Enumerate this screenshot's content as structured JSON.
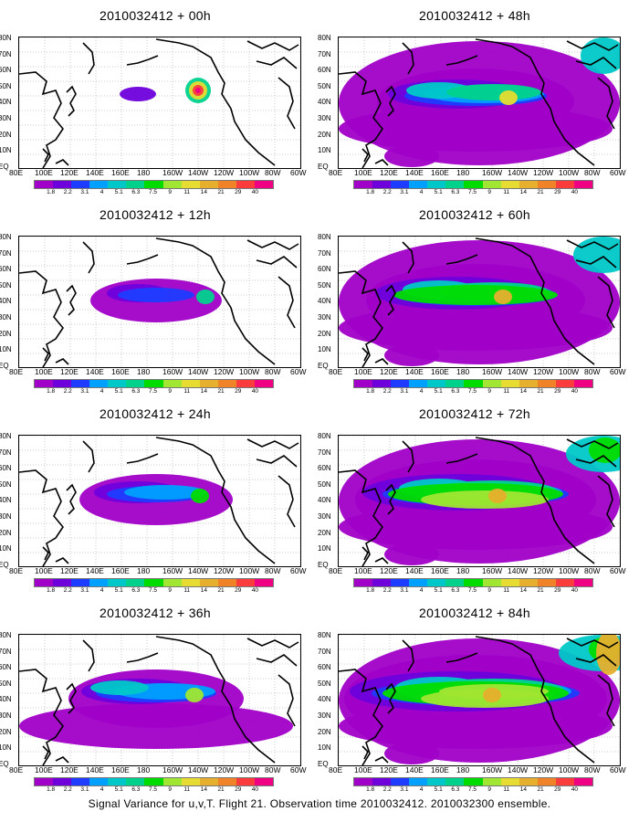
{
  "footer": "Signal Variance for u,v,T. Flight 21. Observation time 2010032412. 2010032300 ensemble.",
  "lat_labels": [
    "80N",
    "70N",
    "60N",
    "50N",
    "40N",
    "30N",
    "20N",
    "10N",
    "EQ"
  ],
  "lon_labels": [
    "80E",
    "100E",
    "120E",
    "140E",
    "160E",
    "180",
    "160W",
    "140W",
    "120W",
    "100W",
    "80W",
    "60W"
  ],
  "colorbar": {
    "labels": [
      "1.8",
      "2.2",
      "3.1",
      "4",
      "5.1",
      "6.3",
      "7.5",
      "9",
      "11",
      "14",
      "21",
      "29",
      "40"
    ],
    "colors": [
      "#a000c8",
      "#6e00dc",
      "#1e3cff",
      "#00a0ff",
      "#00c8c8",
      "#00d28c",
      "#00dc00",
      "#a0e632",
      "#e6dc32",
      "#e6af2d",
      "#f08228",
      "#fa3c3c",
      "#f00082"
    ]
  },
  "panels": [
    {
      "title": "2010032412 + 00h",
      "intensity": 0
    },
    {
      "title": "2010032412 + 48h",
      "intensity": 4
    },
    {
      "title": "2010032412 + 12h",
      "intensity": 1
    },
    {
      "title": "2010032412 + 60h",
      "intensity": 5
    },
    {
      "title": "2010032412 + 24h",
      "intensity": 2
    },
    {
      "title": "2010032412 + 72h",
      "intensity": 6
    },
    {
      "title": "2010032412 + 36h",
      "intensity": 3
    },
    {
      "title": "2010032412 + 84h",
      "intensity": 7
    }
  ]
}
